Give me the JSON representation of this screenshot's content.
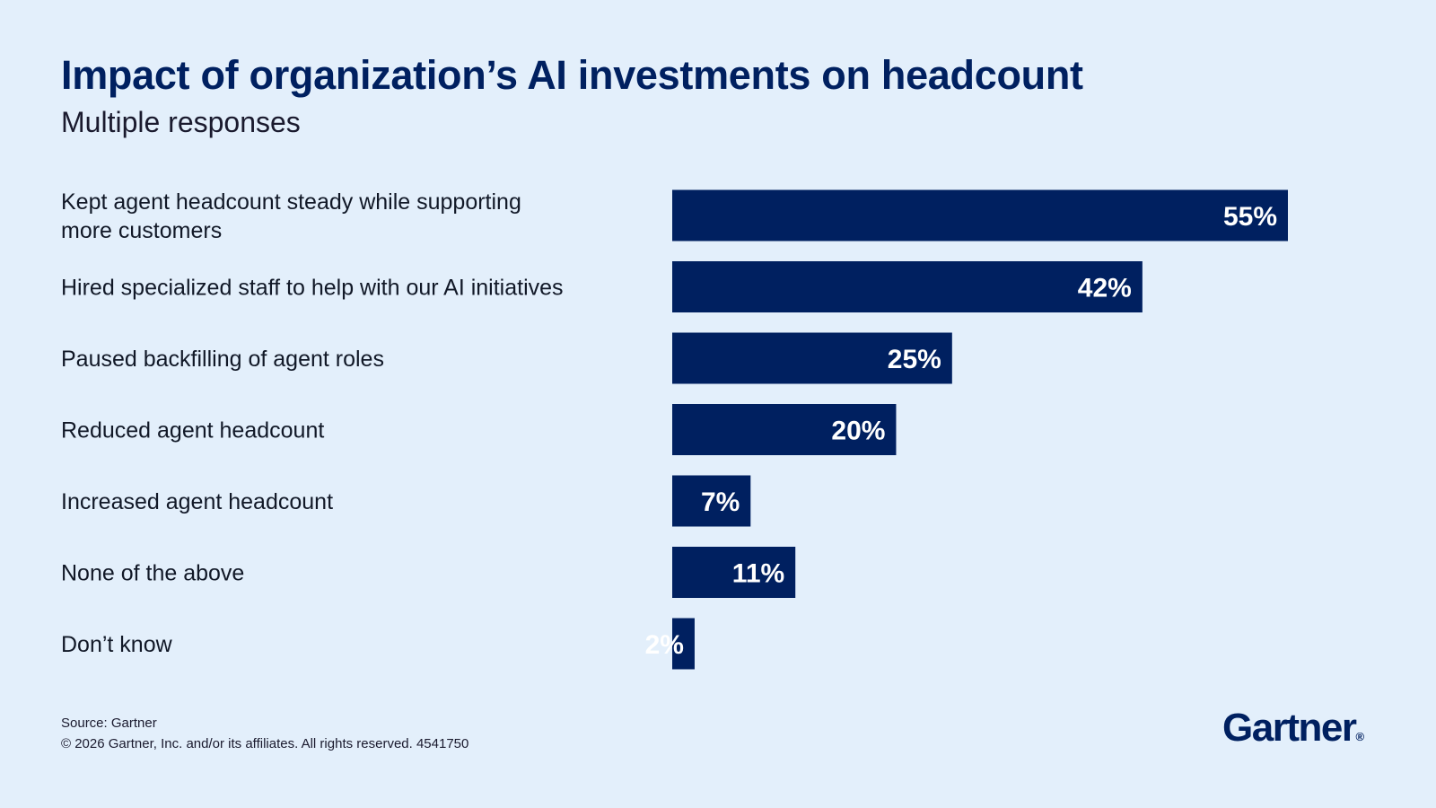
{
  "chart_data": {
    "type": "bar",
    "orientation": "horizontal",
    "title": "Impact of organization’s AI investments on headcount",
    "subtitle": "Multiple responses",
    "categories": [
      [
        "Kept agent headcount steady while supporting",
        "more customers"
      ],
      [
        "Hired specialized staff to help with our AI initiatives"
      ],
      [
        "Paused backfilling of agent roles"
      ],
      [
        "Reduced agent headcount"
      ],
      [
        "Increased agent headcount"
      ],
      [
        "None of the above"
      ],
      [
        "Don’t know"
      ]
    ],
    "values": [
      55,
      42,
      25,
      20,
      7,
      11,
      2
    ],
    "value_labels": [
      "55%",
      "42%",
      "25%",
      "20%",
      "7%",
      "11%",
      "2%"
    ],
    "unit": "%",
    "xlim": [
      0,
      55
    ],
    "grid": false,
    "bar_color": "#002060",
    "label_color": "#ffffff"
  },
  "footer": {
    "source": "Source: Gartner",
    "copyright": "© 2026 Gartner, Inc. and/or its affiliates. All rights reserved. 4541750"
  },
  "brand": {
    "logo_text": "Gartner",
    "logo_mark": "®"
  },
  "colors": {
    "background": "#e3effb",
    "accent": "#002060"
  }
}
